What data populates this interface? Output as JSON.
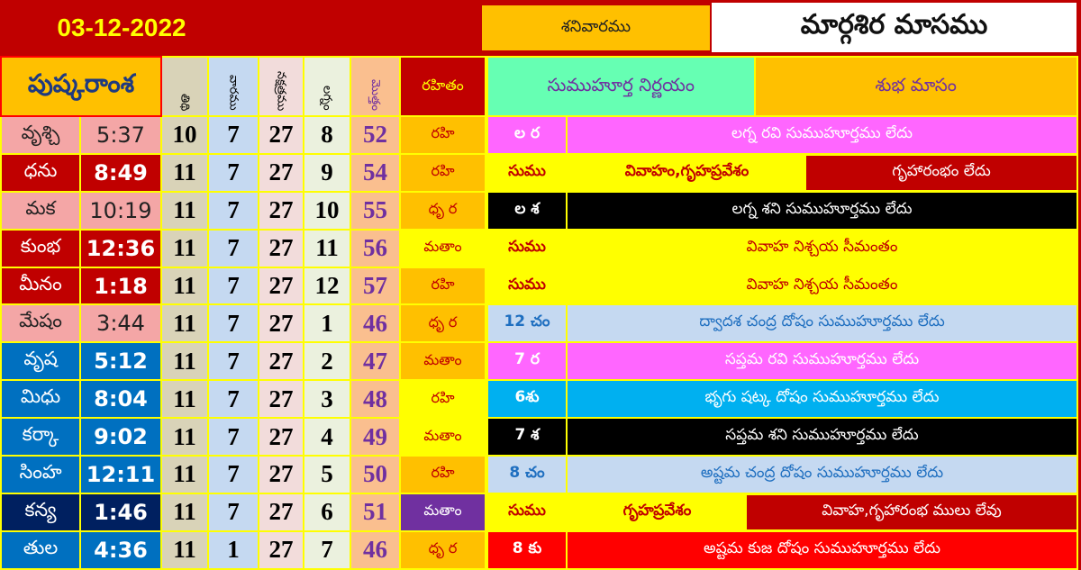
{
  "header": {
    "date": "03-12-2022",
    "weekday": "శనివారము",
    "month": "మార్గశిర మాసము"
  },
  "columns": {
    "rasi": "పుష్కరాంశ",
    "tithi": "తిథి",
    "vara": "వారము",
    "nakshatra": "నక్షత్రము",
    "lagna": "లగ్నం",
    "total": "మొత్తం",
    "rahitam": "రహితం",
    "muhurtha": "సుముహూర్త నిర్ణయం",
    "month": "శుభ మాసం"
  },
  "rows": [
    {
      "rasi": "వృశ్చి",
      "time": "5:37",
      "tithi": "10",
      "vara": "7",
      "nak": "27",
      "lagna": "8",
      "total": "52",
      "rahitam": "రహి",
      "code": "ల ర",
      "text": "లగ్న రవి సుముహూర్తము లేదు",
      "text2": ""
    },
    {
      "rasi": "ధను",
      "time": "8:49",
      "tithi": "11",
      "vara": "7",
      "nak": "27",
      "lagna": "9",
      "total": "54",
      "rahitam": "రహి",
      "code": "సుము",
      "text": "వివాహం,గృహప్రవేశం",
      "text2": "గృహారంభం లేదు"
    },
    {
      "rasi": "మక",
      "time": "10:19",
      "tithi": "11",
      "vara": "7",
      "nak": "27",
      "lagna": "10",
      "total": "55",
      "rahitam": "ధృ ర",
      "code": "ల శ",
      "text": "లగ్న శని  సుముహూర్తము లేదు",
      "text2": ""
    },
    {
      "rasi": "కుంభ",
      "time": "12:36",
      "tithi": "11",
      "vara": "7",
      "nak": "27",
      "lagna": "11",
      "total": "56",
      "rahitam": "మతాం",
      "code": "సుము",
      "text": "వివాహ నిశ్చయ సీమంతం",
      "text2": ""
    },
    {
      "rasi": "మీనం",
      "time": "1:18",
      "tithi": "11",
      "vara": "7",
      "nak": "27",
      "lagna": "12",
      "total": "57",
      "rahitam": "రహి",
      "code": "సుము",
      "text": "వివాహ నిశ్చయ సీమంతం",
      "text2": ""
    },
    {
      "rasi": "మేషం",
      "time": "3:44",
      "tithi": "11",
      "vara": "7",
      "nak": "27",
      "lagna": "1",
      "total": "46",
      "rahitam": "ధృ ర",
      "code": "12 చం",
      "text": "ద్వాదశ  చంద్ర దోషం సుముహూర్తము లేదు",
      "text2": ""
    },
    {
      "rasi": "వృష",
      "time": "5:12",
      "tithi": "11",
      "vara": "7",
      "nak": "27",
      "lagna": "2",
      "total": "47",
      "rahitam": "మతాం",
      "code": "7 ర",
      "text": "సప్తమ  రవి సుముహూర్తము లేదు",
      "text2": ""
    },
    {
      "rasi": "మిధు",
      "time": "8:04",
      "tithi": "11",
      "vara": "7",
      "nak": "27",
      "lagna": "3",
      "total": "48",
      "rahitam": "రహి",
      "code": "6శు",
      "text": "భృగు షట్క దోషం సుముహూర్తము లేదు",
      "text2": ""
    },
    {
      "rasi": "కర్కా",
      "time": "9:02",
      "tithi": "11",
      "vara": "7",
      "nak": "27",
      "lagna": "4",
      "total": "49",
      "rahitam": "మతాం",
      "code": "7 శ",
      "text": "సప్తమ శని సుముహూర్తము లేదు",
      "text2": ""
    },
    {
      "rasi": "సింహ",
      "time": "12:11",
      "tithi": "11",
      "vara": "7",
      "nak": "27",
      "lagna": "5",
      "total": "50",
      "rahitam": "రహి",
      "code": "8 చం",
      "text": "అష్టమ  చంద్ర దోషం సుముహూర్తము లేదు",
      "text2": ""
    },
    {
      "rasi": "కన్య",
      "time": "1:46",
      "tithi": "11",
      "vara": "7",
      "nak": "27",
      "lagna": "6",
      "total": "51",
      "rahitam": "మతాం",
      "code": "సుము",
      "text": "గృహప్రవేశం",
      "text2": "వివాహ,గృహారంభ ములు లేవు"
    },
    {
      "rasi": "తుల",
      "time": "4:36",
      "tithi": "11",
      "vara": "1",
      "nak": "27",
      "lagna": "7",
      "total": "46",
      "rahitam": "ధృ ర",
      "code": "8 కు",
      "text": "అష్టమ కుజ దోషం సుముహూర్తము లేదు",
      "text2": ""
    }
  ],
  "styles": {
    "left": [
      [
        "#f4a6a6",
        "#222"
      ],
      [
        "#c00000",
        "#fff"
      ],
      [
        "#f4a6a6",
        "#222"
      ],
      [
        "#c00000",
        "#fff"
      ],
      [
        "#c00000",
        "#fff"
      ],
      [
        "#f4a6a6",
        "#222"
      ],
      [
        "#0070c0",
        "#fff"
      ],
      [
        "#0070c0",
        "#fff"
      ],
      [
        "#0070c0",
        "#fff"
      ],
      [
        "#0070c0",
        "#fff"
      ],
      [
        "#002060",
        "#fff"
      ],
      [
        "#0070c0",
        "#fff"
      ]
    ],
    "rahitam": [
      [
        "#ffc000",
        "#c00000"
      ],
      [
        "#ffc000",
        "#c00000"
      ],
      [
        "#ffc000",
        "#c00000"
      ],
      [
        "#ffff00",
        "#c00000"
      ],
      [
        "#ffc000",
        "#c00000"
      ],
      [
        "#ffc000",
        "#c00000"
      ],
      [
        "#ffc000",
        "#c00000"
      ],
      [
        "#ffff00",
        "#c00000"
      ],
      [
        "#ffff00",
        "#c00000"
      ],
      [
        "#ffc000",
        "#c00000"
      ],
      [
        "#7030a0",
        "#fff"
      ],
      [
        "#ffc000",
        "#c00000"
      ]
    ],
    "right": [
      [
        "#ff66ff",
        "#fff"
      ],
      [
        "#ffff00",
        "#c00000"
      ],
      [
        "#000000",
        "#fff"
      ],
      [
        "#ffff00",
        "#c00000"
      ],
      [
        "#ffff00",
        "#c00000"
      ],
      [
        "#c5d9f1",
        "#1f6fc0"
      ],
      [
        "#ff66ff",
        "#fff"
      ],
      [
        "#00b0f0",
        "#fff"
      ],
      [
        "#000000",
        "#fff"
      ],
      [
        "#c5d9f1",
        "#1f6fc0"
      ],
      [
        "#ffff00",
        "#c00000"
      ],
      [
        "#ff0000",
        "#fff"
      ]
    ]
  }
}
